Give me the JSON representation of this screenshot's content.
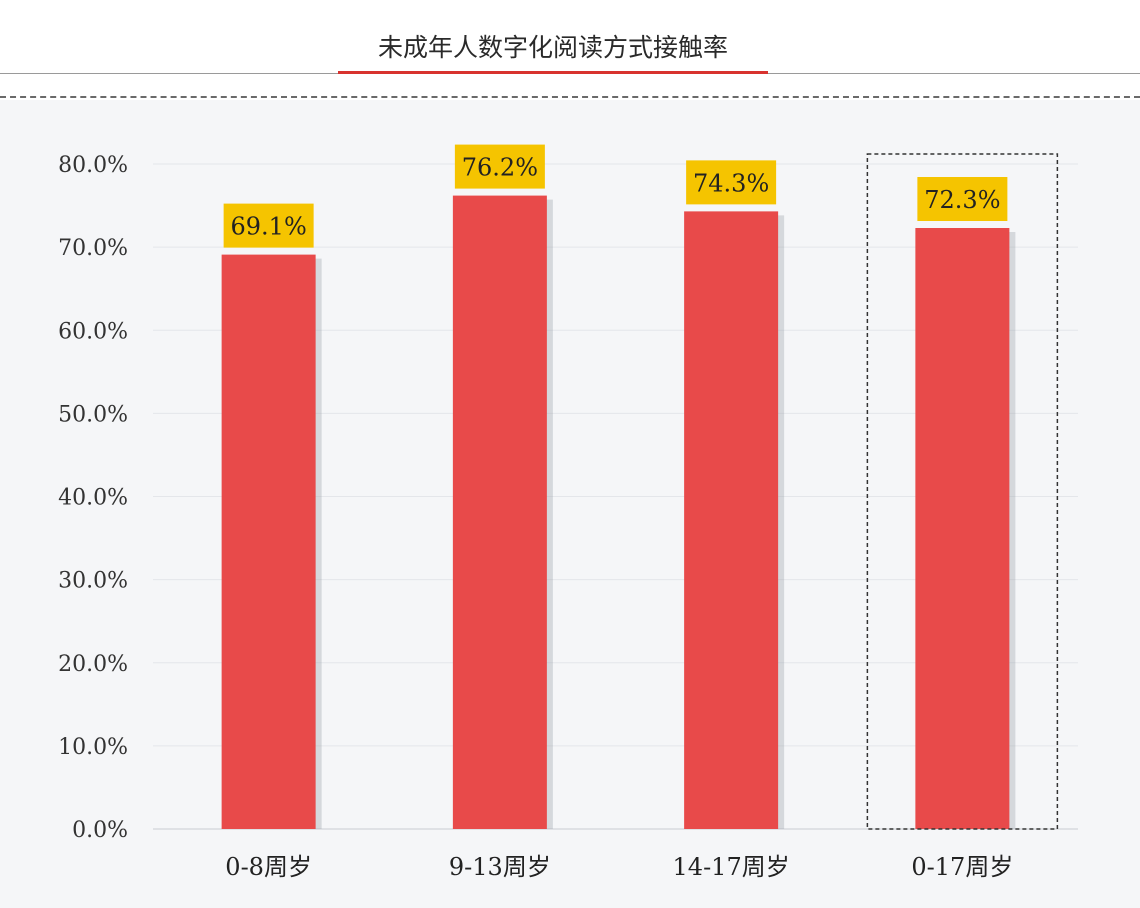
{
  "chart_data": {
    "type": "bar",
    "title": "未成年人数字化阅读方式接触率",
    "categories": [
      "0-8周岁",
      "9-13周岁",
      "14-17周岁",
      "0-17周岁"
    ],
    "values": [
      69.1,
      76.2,
      74.3,
      72.3
    ],
    "value_labels": [
      "69.1%",
      "76.2%",
      "74.3%",
      "72.3%"
    ],
    "ylim": [
      0,
      80
    ],
    "yticks": [
      0,
      10,
      20,
      30,
      40,
      50,
      60,
      70,
      80
    ],
    "ytick_labels": [
      "0.0%",
      "10.0%",
      "20.0%",
      "30.0%",
      "40.0%",
      "50.0%",
      "60.0%",
      "70.0%",
      "80.0%"
    ],
    "grid": true,
    "highlighted_category": "0-17周岁",
    "colors": {
      "bar": "#e84a4a",
      "label_bg": "#f5c400",
      "title_underline": "#d8332f",
      "highlight_box": "#333333"
    }
  }
}
